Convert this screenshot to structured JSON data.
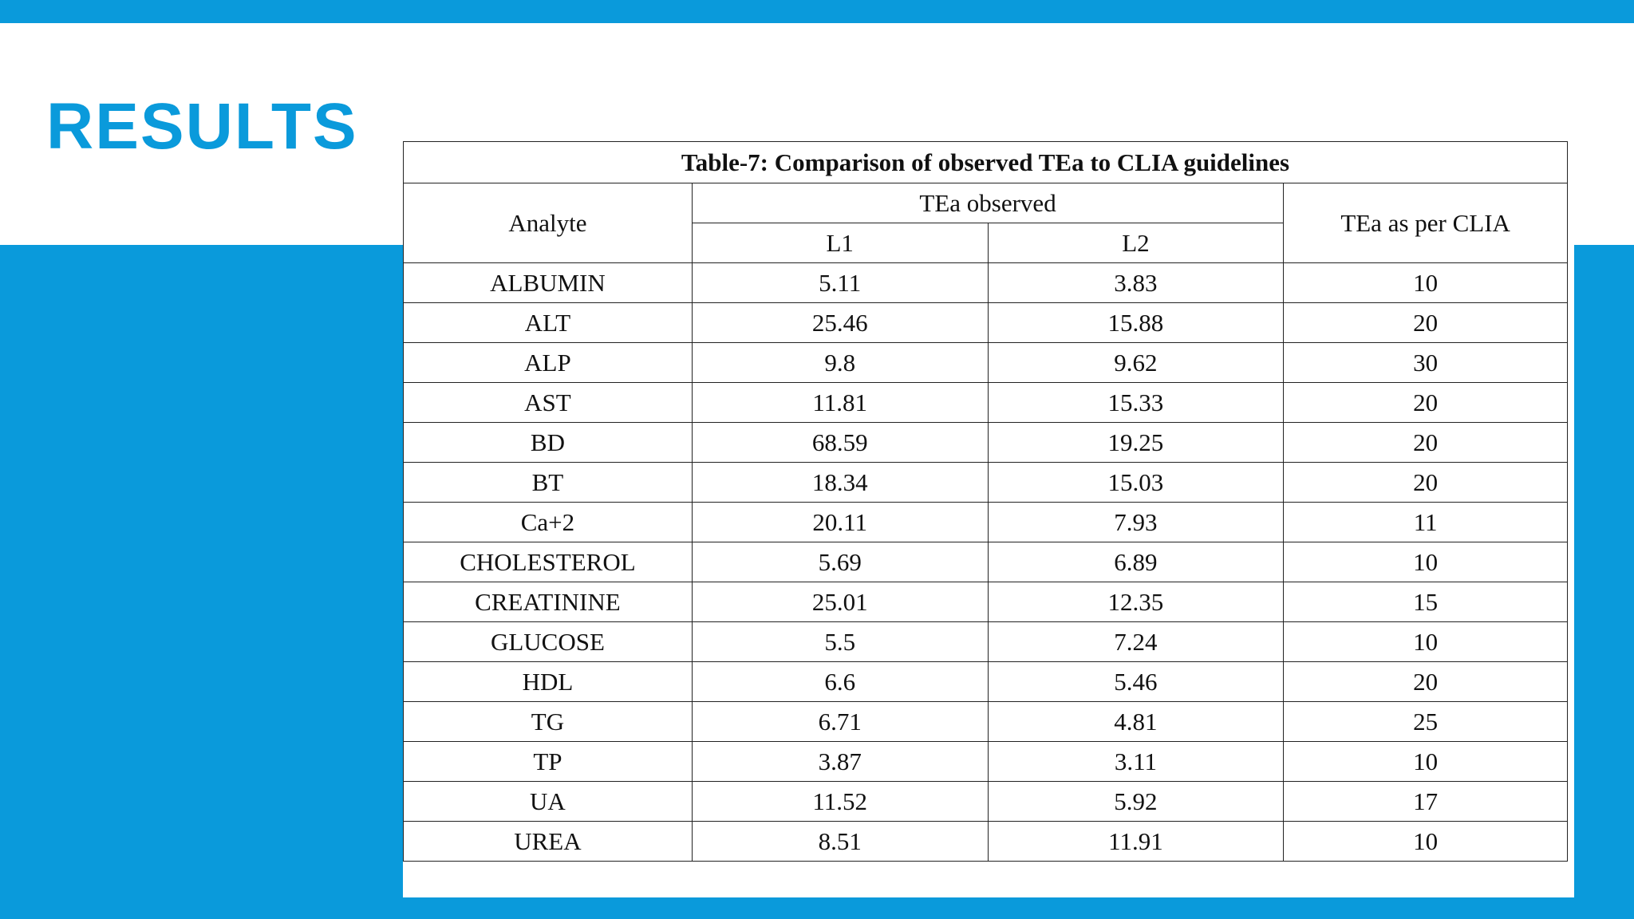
{
  "slide": {
    "title": "RESULTS",
    "colors": {
      "accent": "#0a9adb",
      "background": "#ffffff"
    }
  },
  "table": {
    "caption": "Table-7: Comparison of observed TEa to CLIA guidelines",
    "headers": {
      "analyte": "Analyte",
      "tea_observed": "TEa observed",
      "l1": "L1",
      "l2": "L2",
      "clia": "TEa as per CLIA"
    },
    "rows": [
      {
        "analyte": "ALBUMIN",
        "l1": "5.11",
        "l2": "3.83",
        "clia": "10"
      },
      {
        "analyte": "ALT",
        "l1": "25.46",
        "l2": "15.88",
        "clia": "20"
      },
      {
        "analyte": "ALP",
        "l1": "9.8",
        "l2": "9.62",
        "clia": "30"
      },
      {
        "analyte": "AST",
        "l1": "11.81",
        "l2": "15.33",
        "clia": "20"
      },
      {
        "analyte": "BD",
        "l1": "68.59",
        "l2": "19.25",
        "clia": "20"
      },
      {
        "analyte": "BT",
        "l1": "18.34",
        "l2": "15.03",
        "clia": "20"
      },
      {
        "analyte": "Ca+2",
        "l1": "20.11",
        "l2": "7.93",
        "clia": "11"
      },
      {
        "analyte": "CHOLESTEROL",
        "l1": "5.69",
        "l2": "6.89",
        "clia": "10"
      },
      {
        "analyte": "CREATININE",
        "l1": "25.01",
        "l2": "12.35",
        "clia": "15"
      },
      {
        "analyte": "GLUCOSE",
        "l1": "5.5",
        "l2": "7.24",
        "clia": "10"
      },
      {
        "analyte": "HDL",
        "l1": "6.6",
        "l2": "5.46",
        "clia": "20"
      },
      {
        "analyte": "TG",
        "l1": "6.71",
        "l2": "4.81",
        "clia": "25"
      },
      {
        "analyte": "TP",
        "l1": "3.87",
        "l2": "3.11",
        "clia": "10"
      },
      {
        "analyte": "UA",
        "l1": "11.52",
        "l2": "5.92",
        "clia": "17"
      },
      {
        "analyte": "UREA",
        "l1": "8.51",
        "l2": "11.91",
        "clia": "10"
      }
    ]
  }
}
